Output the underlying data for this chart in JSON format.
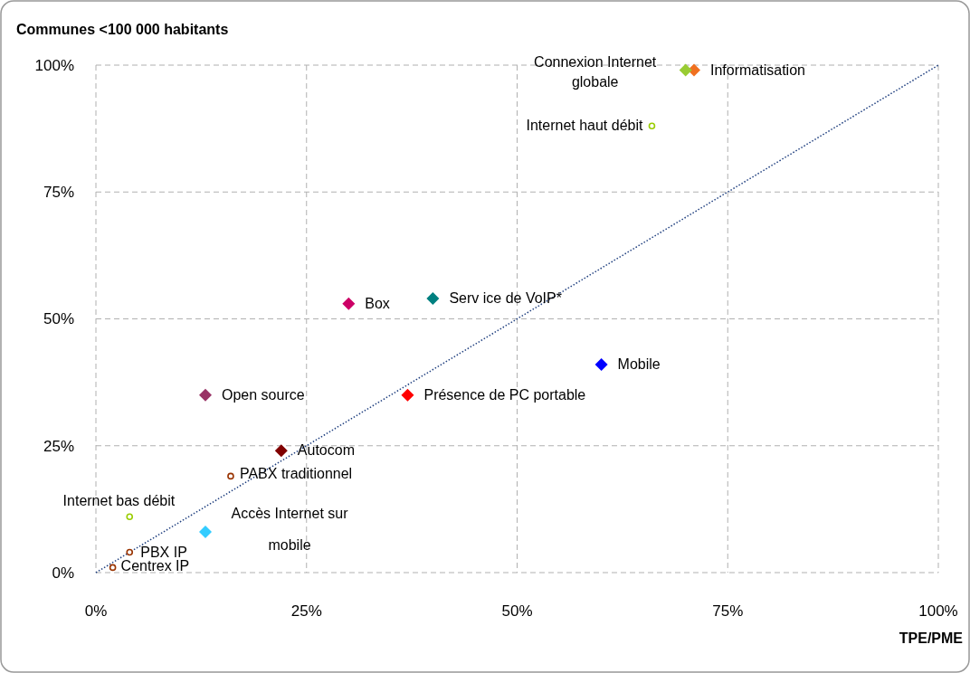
{
  "chart_data": {
    "type": "scatter",
    "ylabel": "Communes <100 000 habitants",
    "xlabel": "TPE/PME",
    "xlim": [
      0,
      100
    ],
    "ylim": [
      0,
      100
    ],
    "xticks": [
      {
        "value": 0,
        "label": "0%"
      },
      {
        "value": 25,
        "label": "25%"
      },
      {
        "value": 50,
        "label": "50%"
      },
      {
        "value": 75,
        "label": "75%"
      },
      {
        "value": 100,
        "label": "100%"
      }
    ],
    "yticks": [
      {
        "value": 0,
        "label": "0%"
      },
      {
        "value": 25,
        "label": "25%"
      },
      {
        "value": 50,
        "label": "50%"
      },
      {
        "value": 75,
        "label": "75%"
      },
      {
        "value": 100,
        "label": "100%"
      }
    ],
    "grid": true,
    "legend": false,
    "series": [
      {
        "name": "Informatisation",
        "color": "#f07020",
        "marker": "diamond",
        "x": [
          71
        ],
        "values": [
          99
        ]
      },
      {
        "name": "Connexion Internet globale",
        "color": "#99cc33",
        "marker": "diamond",
        "x": [
          70
        ],
        "values": [
          99
        ]
      },
      {
        "name": "Internet haut débit",
        "color": "#99cc00",
        "marker": "circle",
        "x": [
          66
        ],
        "values": [
          88
        ]
      },
      {
        "name": "Box",
        "color": "#cc0066",
        "marker": "diamond",
        "x": [
          30
        ],
        "values": [
          53
        ]
      },
      {
        "name": "Serv ice de VoIP*",
        "color": "#008080",
        "marker": "diamond",
        "x": [
          40
        ],
        "values": [
          54
        ]
      },
      {
        "name": "Mobile",
        "color": "#0000ff",
        "marker": "diamond",
        "x": [
          60
        ],
        "values": [
          41
        ]
      },
      {
        "name": "Open source",
        "color": "#993366",
        "marker": "diamond",
        "x": [
          13
        ],
        "values": [
          35
        ]
      },
      {
        "name": "Présence de PC portable",
        "color": "#ff0000",
        "marker": "diamond",
        "x": [
          37
        ],
        "values": [
          35
        ]
      },
      {
        "name": "Autocom",
        "color": "#800000",
        "marker": "diamond",
        "x": [
          22
        ],
        "values": [
          24
        ]
      },
      {
        "name": "PABX traditionnel",
        "color": "#993300",
        "marker": "circle",
        "x": [
          16
        ],
        "values": [
          19
        ]
      },
      {
        "name": "Internet bas débit",
        "color": "#99cc00",
        "marker": "circle",
        "x": [
          4
        ],
        "values": [
          11
        ]
      },
      {
        "name": "Accès Internet sur mobile",
        "color": "#33ccff",
        "marker": "diamond",
        "x": [
          13
        ],
        "values": [
          8
        ]
      },
      {
        "name": "PBX IP",
        "color": "#993300",
        "marker": "circle",
        "x": [
          4
        ],
        "values": [
          4
        ]
      },
      {
        "name": "Centrex IP",
        "color": "#993300",
        "marker": "circle",
        "x": [
          2
        ],
        "values": [
          1
        ]
      },
      {
        "type": "line",
        "color": "#1f3f7f",
        "line_style": "dotted",
        "x": [
          0,
          100
        ],
        "values": [
          0,
          100
        ]
      }
    ]
  }
}
